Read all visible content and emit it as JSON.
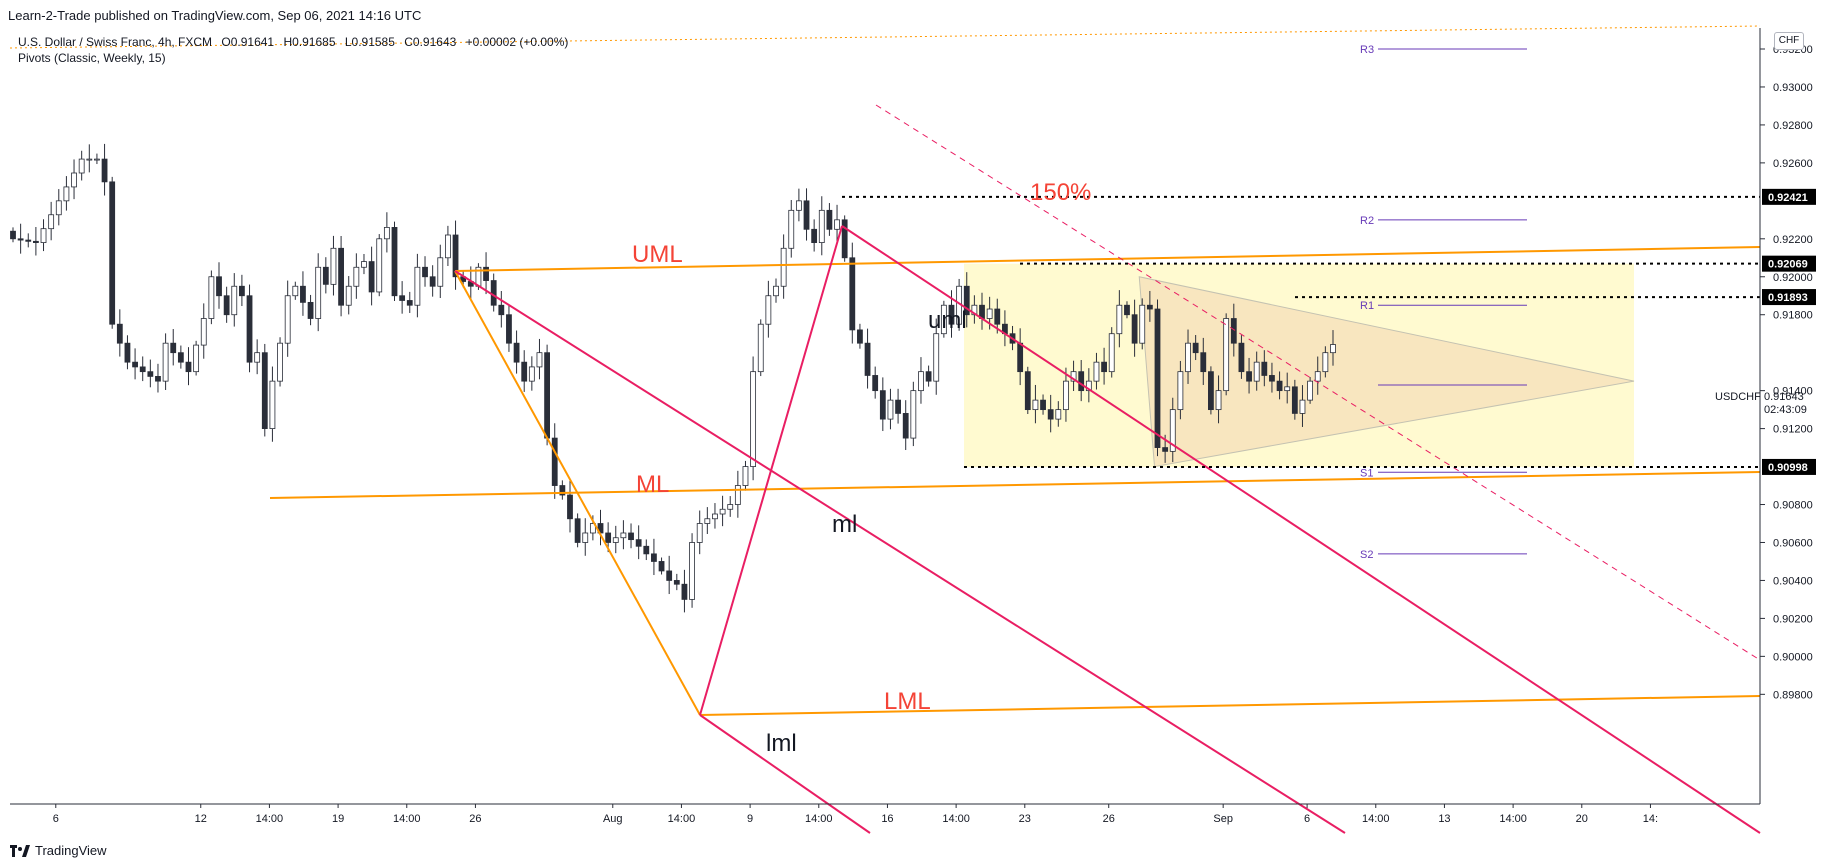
{
  "header": {
    "published": "Learn-2-Trade published on TradingView.com, Sep 06, 2021 14:16 UTC"
  },
  "symbol_bar": {
    "name": "U.S. Dollar / Swiss Franc, 4h, FXCM",
    "open": "O0.91641",
    "high": "H0.91685",
    "low": "L0.91585",
    "close": "C0.91643",
    "change": "+0.00002 (+0.00%)"
  },
  "indicator": {
    "label": "Pivots (Classic, Weekly, 15)"
  },
  "currency_button": "CHF",
  "price_tag": {
    "symbol": "USDCHF",
    "price": "0.91643",
    "countdown": "02:43:09"
  },
  "footer": {
    "brand": "TradingView"
  },
  "colors": {
    "bull": "#ffffff",
    "bear": "#2a2e39",
    "pitchfork_orange": "#ff9800",
    "pitchfork_pink": "#e91e63",
    "pivot": "#673ab7",
    "range_fill": "#fff9c4",
    "triangle_fill": "#f5d9b5",
    "label_red": "#f44336"
  },
  "chart_data": {
    "type": "candlestick",
    "title": "",
    "ylim": [
      0.898,
      0.933
    ],
    "y_ticks": [
      "0.93200",
      "0.93000",
      "0.92800",
      "0.92600",
      "0.92200",
      "0.92000",
      "0.91800",
      "0.91400",
      "0.91200",
      "0.90800",
      "0.90600",
      "0.90400",
      "0.90200",
      "0.90000",
      "0.89800"
    ],
    "x_ticks": [
      {
        "label": "6",
        "bar": 6
      },
      {
        "label": "12",
        "bar": 25
      },
      {
        "label": "14:00",
        "bar": 34
      },
      {
        "label": "19",
        "bar": 43
      },
      {
        "label": "14:00",
        "bar": 52
      },
      {
        "label": "26",
        "bar": 61
      },
      {
        "label": "Aug",
        "bar": 79
      },
      {
        "label": "14:00",
        "bar": 88
      },
      {
        "label": "9",
        "bar": 97
      },
      {
        "label": "14:00",
        "bar": 106
      },
      {
        "label": "16",
        "bar": 115
      },
      {
        "label": "14:00",
        "bar": 124
      },
      {
        "label": "23",
        "bar": 133
      },
      {
        "label": "26",
        "bar": 144
      },
      {
        "label": "Sep",
        "bar": 159
      },
      {
        "label": "6",
        "bar": 170
      },
      {
        "label": "14:00",
        "bar": 179
      },
      {
        "label": "13",
        "bar": 188
      },
      {
        "label": "14:00",
        "bar": 197
      },
      {
        "label": "20",
        "bar": 206
      },
      {
        "label": "14:",
        "bar": 215
      }
    ],
    "price_labels": [
      {
        "text": "0.92421",
        "value": 0.92421
      },
      {
        "text": "0.92069",
        "value": 0.92069
      },
      {
        "text": "0.91893",
        "value": 0.91893
      },
      {
        "text": "0.90998",
        "value": 0.90998
      }
    ],
    "pivots": [
      {
        "name": "R3",
        "value": 0.932
      },
      {
        "name": "R2",
        "value": 0.923
      },
      {
        "name": "R1",
        "value": 0.9185
      },
      {
        "name": "P",
        "value": 0.9143
      },
      {
        "name": "S1",
        "value": 0.9097
      },
      {
        "name": "S2",
        "value": 0.9054
      }
    ],
    "annotations": [
      {
        "text": "UML",
        "color": "red"
      },
      {
        "text": "ML",
        "color": "red"
      },
      {
        "text": "LML",
        "color": "red"
      },
      {
        "text": "uml",
        "color": "black"
      },
      {
        "text": "ml",
        "color": "black"
      },
      {
        "text": "lml",
        "color": "black"
      },
      {
        "text": "150%",
        "color": "red"
      }
    ],
    "waypoints": [
      [
        0,
        0.922
      ],
      [
        3,
        0.9218
      ],
      [
        6,
        0.924
      ],
      [
        9,
        0.9262
      ],
      [
        11,
        0.9262
      ],
      [
        12,
        0.925
      ],
      [
        13,
        0.9175
      ],
      [
        15,
        0.9155
      ],
      [
        17,
        0.915
      ],
      [
        19,
        0.9145
      ],
      [
        20,
        0.9165
      ],
      [
        23,
        0.915
      ],
      [
        25,
        0.9178
      ],
      [
        26,
        0.92
      ],
      [
        28,
        0.918
      ],
      [
        29,
        0.9195
      ],
      [
        30,
        0.919
      ],
      [
        31,
        0.9155
      ],
      [
        32,
        0.916
      ],
      [
        33,
        0.912
      ],
      [
        34,
        0.9145
      ],
      [
        35,
        0.9165
      ],
      [
        36,
        0.919
      ],
      [
        37,
        0.9195
      ],
      [
        39,
        0.9178
      ],
      [
        40,
        0.9205
      ],
      [
        41,
        0.9196
      ],
      [
        42,
        0.9215
      ],
      [
        43,
        0.9185
      ],
      [
        45,
        0.9205
      ],
      [
        46,
        0.9208
      ],
      [
        47,
        0.9192
      ],
      [
        48,
        0.922
      ],
      [
        49,
        0.9226
      ],
      [
        50,
        0.919
      ],
      [
        52,
        0.9185
      ],
      [
        53,
        0.9205
      ],
      [
        55,
        0.9195
      ],
      [
        56,
        0.921
      ],
      [
        57,
        0.9222
      ],
      [
        58,
        0.92
      ],
      [
        60,
        0.9195
      ],
      [
        61,
        0.9205
      ],
      [
        62,
        0.9198
      ],
      [
        63,
        0.9185
      ],
      [
        64,
        0.918
      ],
      [
        65,
        0.9165
      ],
      [
        67,
        0.9145
      ],
      [
        69,
        0.916
      ],
      [
        70,
        0.9115
      ],
      [
        71,
        0.909
      ],
      [
        72,
        0.9085
      ],
      [
        74,
        0.906
      ],
      [
        76,
        0.907
      ],
      [
        78,
        0.906
      ],
      [
        80,
        0.9065
      ],
      [
        82,
        0.9058
      ],
      [
        84,
        0.905
      ],
      [
        86,
        0.904
      ],
      [
        87,
        0.9038
      ],
      [
        88,
        0.903
      ],
      [
        89,
        0.906
      ],
      [
        90,
        0.907
      ],
      [
        92,
        0.9075
      ],
      [
        94,
        0.908
      ],
      [
        96,
        0.91
      ],
      [
        97,
        0.915
      ],
      [
        98,
        0.9175
      ],
      [
        99,
        0.919
      ],
      [
        100,
        0.9195
      ],
      [
        101,
        0.9215
      ],
      [
        102,
        0.9235
      ],
      [
        103,
        0.924
      ],
      [
        104,
        0.9225
      ],
      [
        105,
        0.9218
      ],
      [
        106,
        0.9235
      ],
      [
        107,
        0.9225
      ],
      [
        108,
        0.923
      ],
      [
        109,
        0.921
      ],
      [
        110,
        0.9172
      ],
      [
        111,
        0.9165
      ],
      [
        112,
        0.9148
      ],
      [
        113,
        0.914
      ],
      [
        114,
        0.9125
      ],
      [
        115,
        0.9135
      ],
      [
        116,
        0.9128
      ],
      [
        117,
        0.9115
      ],
      [
        118,
        0.914
      ],
      [
        119,
        0.915
      ],
      [
        120,
        0.9145
      ],
      [
        121,
        0.917
      ],
      [
        122,
        0.9185
      ],
      [
        123,
        0.9175
      ],
      [
        124,
        0.9195
      ],
      [
        125,
        0.918
      ],
      [
        126,
        0.9185
      ],
      [
        127,
        0.9178
      ],
      [
        128,
        0.9183
      ],
      [
        129,
        0.9175
      ],
      [
        130,
        0.917
      ],
      [
        131,
        0.9165
      ],
      [
        132,
        0.915
      ],
      [
        133,
        0.913
      ],
      [
        134,
        0.9135
      ],
      [
        135,
        0.913
      ],
      [
        136,
        0.9125
      ],
      [
        137,
        0.913
      ],
      [
        138,
        0.9145
      ],
      [
        139,
        0.915
      ],
      [
        140,
        0.914
      ],
      [
        141,
        0.9145
      ],
      [
        142,
        0.9155
      ],
      [
        143,
        0.915
      ],
      [
        144,
        0.917
      ],
      [
        145,
        0.9185
      ],
      [
        146,
        0.918
      ],
      [
        147,
        0.9165
      ],
      [
        148,
        0.9185
      ],
      [
        149,
        0.9183
      ],
      [
        150,
        0.911
      ],
      [
        151,
        0.9108
      ],
      [
        152,
        0.913
      ],
      [
        153,
        0.915
      ],
      [
        154,
        0.9165
      ],
      [
        155,
        0.916
      ],
      [
        156,
        0.915
      ],
      [
        157,
        0.913
      ],
      [
        158,
        0.914
      ],
      [
        159,
        0.9178
      ],
      [
        160,
        0.9165
      ],
      [
        161,
        0.915
      ],
      [
        162,
        0.9145
      ],
      [
        163,
        0.9155
      ],
      [
        164,
        0.9148
      ],
      [
        165,
        0.9145
      ],
      [
        166,
        0.914
      ],
      [
        167,
        0.9142
      ],
      [
        168,
        0.9128
      ],
      [
        169,
        0.9135
      ],
      [
        170,
        0.9145
      ],
      [
        171,
        0.915
      ],
      [
        172,
        0.916
      ],
      [
        173,
        0.91643
      ]
    ]
  }
}
